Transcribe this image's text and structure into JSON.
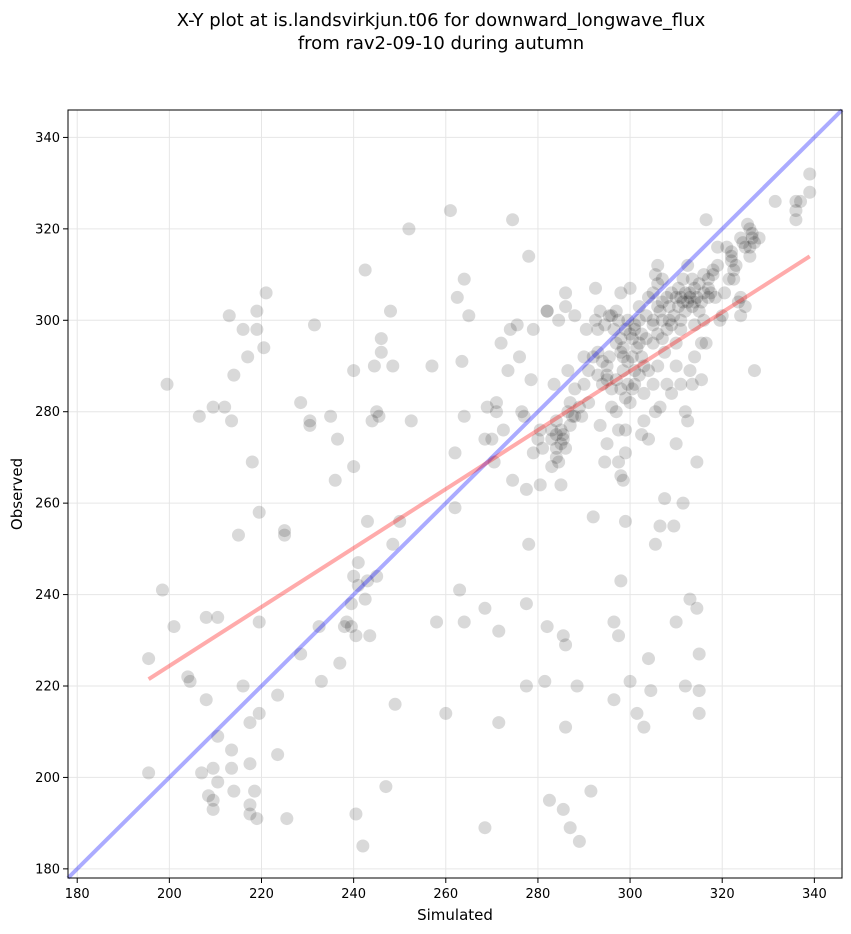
{
  "chart_data": {
    "type": "scatter",
    "title_line1": "X-Y plot at is.landsvirkjun.t06 for downward_longwave_flux",
    "title_line2": "from rav2-09-10 during autumn",
    "xlabel": "Simulated",
    "ylabel": "Observed",
    "xlim": [
      178,
      346
    ],
    "ylim": [
      178,
      346
    ],
    "xticks": [
      180,
      200,
      220,
      240,
      260,
      280,
      300,
      320,
      340
    ],
    "yticks": [
      180,
      200,
      220,
      240,
      260,
      280,
      300,
      320,
      340
    ],
    "xtick_labels": [
      "180",
      "200",
      "220",
      "240",
      "260",
      "280",
      "300",
      "320",
      "340"
    ],
    "ytick_labels": [
      "180",
      "200",
      "220",
      "240",
      "260",
      "280",
      "300",
      "320",
      "340"
    ],
    "grid": true,
    "point_color": "#000000",
    "identity_line": {
      "color": "#0000ff",
      "x": [
        178,
        346
      ],
      "y": [
        178,
        346
      ]
    },
    "regression_line": {
      "color": "#ff0000",
      "x": [
        195.5,
        339
      ],
      "y": [
        221.5,
        314
      ]
    },
    "points": [
      [
        195.5,
        226
      ],
      [
        195.5,
        201
      ],
      [
        198.5,
        241
      ],
      [
        199.5,
        286
      ],
      [
        201,
        233
      ],
      [
        204,
        222
      ],
      [
        204.5,
        221
      ],
      [
        206.5,
        279
      ],
      [
        207,
        201
      ],
      [
        208,
        235
      ],
      [
        208,
        217
      ],
      [
        208.5,
        196
      ],
      [
        209.5,
        281
      ],
      [
        209.5,
        202
      ],
      [
        209.5,
        195
      ],
      [
        209.5,
        193
      ],
      [
        210.5,
        235
      ],
      [
        210.5,
        209
      ],
      [
        210.5,
        199
      ],
      [
        212,
        281
      ],
      [
        213,
        301
      ],
      [
        213.5,
        206
      ],
      [
        213.5,
        202
      ],
      [
        213.5,
        278
      ],
      [
        214,
        288
      ],
      [
        214,
        197
      ],
      [
        215,
        253
      ],
      [
        216,
        298
      ],
      [
        216,
        220
      ],
      [
        217,
        292
      ],
      [
        217.5,
        212
      ],
      [
        217.5,
        203
      ],
      [
        217.5,
        194
      ],
      [
        217.5,
        192
      ],
      [
        218,
        269
      ],
      [
        218.5,
        197
      ],
      [
        219,
        191
      ],
      [
        219,
        298
      ],
      [
        219,
        302
      ],
      [
        219.5,
        258
      ],
      [
        219.5,
        234
      ],
      [
        219.5,
        214
      ],
      [
        220.5,
        294
      ],
      [
        221,
        306
      ],
      [
        223.5,
        205
      ],
      [
        223.5,
        218
      ],
      [
        225,
        254
      ],
      [
        225,
        253
      ],
      [
        225.5,
        191
      ],
      [
        228.5,
        282
      ],
      [
        228.5,
        227
      ],
      [
        230.5,
        278
      ],
      [
        230.5,
        277
      ],
      [
        231.5,
        299
      ],
      [
        232.5,
        233
      ],
      [
        233,
        221
      ],
      [
        235,
        279
      ],
      [
        236,
        265
      ],
      [
        236.5,
        274
      ],
      [
        237,
        225
      ],
      [
        238,
        233
      ],
      [
        238.5,
        234
      ],
      [
        239.5,
        233
      ],
      [
        239.5,
        238
      ],
      [
        240,
        268
      ],
      [
        240,
        244
      ],
      [
        240,
        289
      ],
      [
        240.5,
        231
      ],
      [
        240.5,
        192
      ],
      [
        241,
        247
      ],
      [
        241,
        242
      ],
      [
        242,
        185
      ],
      [
        242.5,
        311
      ],
      [
        242.5,
        239
      ],
      [
        243,
        243
      ],
      [
        243,
        256
      ],
      [
        243.5,
        231
      ],
      [
        244,
        278
      ],
      [
        244.5,
        290
      ],
      [
        245,
        244
      ],
      [
        245,
        280
      ],
      [
        245.5,
        279
      ],
      [
        246,
        296
      ],
      [
        246,
        293
      ],
      [
        247,
        198
      ],
      [
        248,
        302
      ],
      [
        248.5,
        251
      ],
      [
        248.5,
        290
      ],
      [
        249,
        216
      ],
      [
        250,
        256
      ],
      [
        252,
        320
      ],
      [
        252.5,
        278
      ],
      [
        257,
        290
      ],
      [
        258,
        234
      ],
      [
        260,
        214
      ],
      [
        261,
        324
      ],
      [
        262,
        259
      ],
      [
        262,
        271
      ],
      [
        262.5,
        305
      ],
      [
        263,
        241
      ],
      [
        263.5,
        291
      ],
      [
        264,
        234
      ],
      [
        264,
        279
      ],
      [
        264,
        309
      ],
      [
        265,
        301
      ],
      [
        268.5,
        274
      ],
      [
        268.5,
        237
      ],
      [
        268.5,
        189
      ],
      [
        269,
        281
      ],
      [
        270,
        274
      ],
      [
        270.5,
        269
      ],
      [
        271,
        282
      ],
      [
        271,
        280
      ],
      [
        271.5,
        232
      ],
      [
        271.5,
        212
      ],
      [
        272,
        295
      ],
      [
        272.5,
        276
      ],
      [
        273.5,
        289
      ],
      [
        274,
        298
      ],
      [
        274.5,
        265
      ],
      [
        274.5,
        322
      ],
      [
        275.5,
        299
      ],
      [
        276,
        292
      ],
      [
        276.5,
        280
      ],
      [
        277,
        279
      ],
      [
        277.5,
        263
      ],
      [
        277.5,
        238
      ],
      [
        277.5,
        220
      ],
      [
        278,
        314
      ],
      [
        278,
        251
      ],
      [
        278.5,
        287
      ],
      [
        279,
        271
      ],
      [
        279,
        298
      ],
      [
        280,
        274
      ],
      [
        280.5,
        264
      ],
      [
        280.5,
        276
      ],
      [
        281,
        272
      ],
      [
        281.5,
        221
      ],
      [
        282,
        233
      ],
      [
        282,
        302
      ],
      [
        282,
        302
      ],
      [
        282.5,
        195
      ],
      [
        283,
        268
      ],
      [
        283,
        274
      ],
      [
        283,
        276
      ],
      [
        283.5,
        286
      ],
      [
        284,
        270
      ],
      [
        284,
        272
      ],
      [
        284,
        275
      ],
      [
        284,
        278
      ],
      [
        284.5,
        300
      ],
      [
        284.5,
        269
      ],
      [
        285,
        276
      ],
      [
        285,
        273
      ],
      [
        285,
        264
      ],
      [
        285.5,
        275
      ],
      [
        285.5,
        274
      ],
      [
        285.5,
        231
      ],
      [
        285.5,
        193
      ],
      [
        286,
        272
      ],
      [
        286,
        229
      ],
      [
        286,
        306
      ],
      [
        286,
        303
      ],
      [
        286,
        211
      ],
      [
        286.5,
        280
      ],
      [
        286.5,
        289
      ],
      [
        287,
        282
      ],
      [
        287,
        277
      ],
      [
        287,
        189
      ],
      [
        287.5,
        279
      ],
      [
        288,
        285
      ],
      [
        288,
        279
      ],
      [
        288,
        301
      ],
      [
        288.5,
        220
      ],
      [
        289,
        281
      ],
      [
        289,
        186
      ],
      [
        289.5,
        279
      ],
      [
        290,
        286
      ],
      [
        290,
        292
      ],
      [
        290.5,
        298
      ],
      [
        291,
        282
      ],
      [
        291,
        289
      ],
      [
        291.5,
        197
      ],
      [
        292,
        292
      ],
      [
        292,
        257
      ],
      [
        292.5,
        300
      ],
      [
        292.5,
        307
      ],
      [
        293,
        293
      ],
      [
        293,
        288
      ],
      [
        293,
        298
      ],
      [
        293.5,
        302
      ],
      [
        293.5,
        277
      ],
      [
        294,
        291
      ],
      [
        294,
        286
      ],
      [
        294.5,
        299
      ],
      [
        294.5,
        269
      ],
      [
        295,
        288
      ],
      [
        295,
        287
      ],
      [
        295,
        290
      ],
      [
        295,
        273
      ],
      [
        295.5,
        301
      ],
      [
        295.5,
        292
      ],
      [
        296,
        285
      ],
      [
        296,
        301
      ],
      [
        296,
        281
      ],
      [
        296.5,
        298
      ],
      [
        296.5,
        234
      ],
      [
        296.5,
        217
      ],
      [
        297,
        295
      ],
      [
        297,
        302
      ],
      [
        297,
        287
      ],
      [
        297,
        280
      ],
      [
        297.5,
        300
      ],
      [
        297.5,
        231
      ],
      [
        297.5,
        269
      ],
      [
        297.5,
        276
      ],
      [
        298,
        296
      ],
      [
        298,
        285
      ],
      [
        298,
        293
      ],
      [
        298,
        306
      ],
      [
        298,
        266
      ],
      [
        298,
        243
      ],
      [
        298.5,
        292
      ],
      [
        298.5,
        289
      ],
      [
        298.5,
        294
      ],
      [
        298.5,
        265
      ],
      [
        299,
        298
      ],
      [
        299,
        283
      ],
      [
        299,
        256
      ],
      [
        299,
        276
      ],
      [
        299,
        271
      ],
      [
        299.5,
        286
      ],
      [
        299.5,
        300
      ],
      [
        299.5,
        291
      ],
      [
        300,
        297
      ],
      [
        300,
        282
      ],
      [
        300,
        307
      ],
      [
        300,
        221
      ],
      [
        300.5,
        285
      ],
      [
        300.5,
        292
      ],
      [
        300.5,
        296
      ],
      [
        301,
        286
      ],
      [
        301,
        289
      ],
      [
        301,
        298
      ],
      [
        301,
        299
      ],
      [
        301.5,
        294
      ],
      [
        301.5,
        214
      ],
      [
        302,
        288
      ],
      [
        302,
        295
      ],
      [
        302,
        300
      ],
      [
        302,
        303
      ],
      [
        302.5,
        292
      ],
      [
        302.5,
        275
      ],
      [
        302.5,
        297
      ],
      [
        303,
        284
      ],
      [
        303,
        278
      ],
      [
        303,
        290
      ],
      [
        303,
        211
      ],
      [
        303.5,
        301
      ],
      [
        303.5,
        296
      ],
      [
        304,
        305
      ],
      [
        304,
        289
      ],
      [
        304,
        226
      ],
      [
        304,
        274
      ],
      [
        304.5,
        219
      ],
      [
        305,
        299
      ],
      [
        305,
        295
      ],
      [
        305,
        286
      ],
      [
        305,
        300
      ],
      [
        305,
        306
      ],
      [
        305.5,
        310
      ],
      [
        305.5,
        280
      ],
      [
        305.5,
        251
      ],
      [
        306,
        297
      ],
      [
        306,
        303
      ],
      [
        306,
        308
      ],
      [
        306,
        312
      ],
      [
        306,
        290
      ],
      [
        306.5,
        302
      ],
      [
        306.5,
        281
      ],
      [
        306.5,
        255
      ],
      [
        307,
        300
      ],
      [
        307,
        304
      ],
      [
        307,
        296
      ],
      [
        307,
        309
      ],
      [
        307.5,
        293
      ],
      [
        307.5,
        261
      ],
      [
        308,
        305
      ],
      [
        308,
        298
      ],
      [
        308,
        286
      ],
      [
        308.5,
        303
      ],
      [
        308.5,
        300
      ],
      [
        309,
        306
      ],
      [
        309,
        299
      ],
      [
        309,
        284
      ],
      [
        309.5,
        301
      ],
      [
        309.5,
        255
      ],
      [
        310,
        305
      ],
      [
        310,
        295
      ],
      [
        310,
        290
      ],
      [
        310,
        273
      ],
      [
        310,
        234
      ],
      [
        310.5,
        303
      ],
      [
        310.5,
        307
      ],
      [
        311,
        305
      ],
      [
        311,
        300
      ],
      [
        311,
        298
      ],
      [
        311,
        286
      ],
      [
        311.5,
        304
      ],
      [
        311.5,
        309
      ],
      [
        311.5,
        260
      ],
      [
        312,
        306
      ],
      [
        312,
        302
      ],
      [
        312,
        280
      ],
      [
        312,
        220
      ],
      [
        312.5,
        304
      ],
      [
        312.5,
        312
      ],
      [
        312.5,
        278
      ],
      [
        313,
        305
      ],
      [
        313,
        306
      ],
      [
        313,
        289
      ],
      [
        313,
        239
      ],
      [
        313.5,
        303
      ],
      [
        313.5,
        309
      ],
      [
        313.5,
        286
      ],
      [
        314,
        304
      ],
      [
        314,
        307
      ],
      [
        314,
        299
      ],
      [
        314,
        292
      ],
      [
        314.5,
        305
      ],
      [
        314.5,
        237
      ],
      [
        314.5,
        269
      ],
      [
        315,
        302
      ],
      [
        315,
        308
      ],
      [
        315,
        227
      ],
      [
        315,
        219
      ],
      [
        315,
        214
      ],
      [
        315.5,
        304
      ],
      [
        315.5,
        295
      ],
      [
        315.5,
        287
      ],
      [
        316,
        306
      ],
      [
        316,
        310
      ],
      [
        316,
        300
      ],
      [
        316.5,
        322
      ],
      [
        316.5,
        295
      ],
      [
        317,
        305
      ],
      [
        317,
        307
      ],
      [
        317,
        309
      ],
      [
        317.5,
        306
      ],
      [
        318,
        311
      ],
      [
        318,
        310
      ],
      [
        318.5,
        305
      ],
      [
        319,
        312
      ],
      [
        319,
        316
      ],
      [
        319.5,
        300
      ],
      [
        320,
        301
      ],
      [
        320.5,
        306
      ],
      [
        321,
        316
      ],
      [
        321.5,
        309
      ],
      [
        322,
        315
      ],
      [
        322,
        313
      ],
      [
        322,
        314
      ],
      [
        322.5,
        311
      ],
      [
        322.5,
        309
      ],
      [
        323,
        312
      ],
      [
        323.5,
        304
      ],
      [
        324,
        318
      ],
      [
        324,
        305
      ],
      [
        324,
        301
      ],
      [
        324.5,
        317
      ],
      [
        325,
        303
      ],
      [
        325.5,
        321
      ],
      [
        325,
        316
      ],
      [
        326,
        314
      ],
      [
        326,
        316
      ],
      [
        326,
        320
      ],
      [
        326.5,
        318
      ],
      [
        326.5,
        319
      ],
      [
        327,
        317
      ],
      [
        327,
        289
      ],
      [
        328,
        318
      ],
      [
        331.5,
        326
      ],
      [
        336,
        326
      ],
      [
        336,
        324
      ],
      [
        336,
        322
      ],
      [
        337,
        326
      ],
      [
        339,
        332
      ],
      [
        339,
        328
      ]
    ]
  }
}
